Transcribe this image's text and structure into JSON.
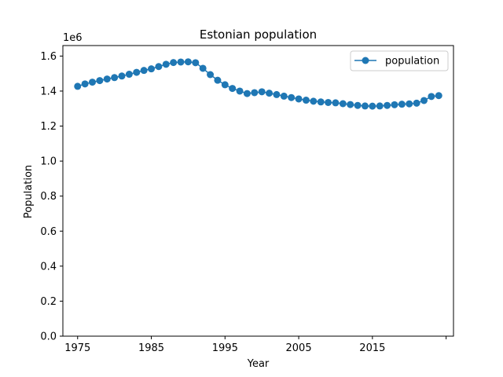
{
  "chart_data": {
    "type": "line",
    "title": "Estonian population",
    "xlabel": "Year",
    "ylabel": "Population",
    "y_offset_label": "1e6",
    "y_scale_factor": 1000000,
    "xlim": [
      1973,
      2026
    ],
    "ylim": [
      0,
      1.66
    ],
    "x_ticks": [
      1975,
      1985,
      1995,
      2005,
      2015,
      2025
    ],
    "x_tick_labels": [
      "1975",
      "1985",
      "1995",
      "2005",
      "2015",
      ""
    ],
    "y_ticks": [
      0.0,
      0.2,
      0.4,
      0.6,
      0.8,
      1.0,
      1.2,
      1.4,
      1.6
    ],
    "y_tick_labels": [
      "0.0",
      "0.2",
      "0.4",
      "0.6",
      "0.8",
      "1.0",
      "1.2",
      "1.4",
      "1.6"
    ],
    "grid": false,
    "legend_position": "upper right",
    "series": [
      {
        "name": "population",
        "color": "#1f77b4",
        "marker": "circle",
        "x": [
          1975,
          1976,
          1977,
          1978,
          1979,
          1980,
          1981,
          1982,
          1983,
          1984,
          1985,
          1986,
          1987,
          1988,
          1989,
          1990,
          1991,
          1992,
          1993,
          1994,
          1995,
          1996,
          1997,
          1998,
          1999,
          2000,
          2001,
          2002,
          2003,
          2004,
          2005,
          2006,
          2007,
          2008,
          2009,
          2010,
          2011,
          2012,
          2013,
          2014,
          2015,
          2016,
          2017,
          2018,
          2019,
          2020,
          2021,
          2022,
          2023,
          2024
        ],
        "values": [
          1.427,
          1.441,
          1.451,
          1.46,
          1.469,
          1.477,
          1.486,
          1.496,
          1.507,
          1.518,
          1.527,
          1.54,
          1.553,
          1.563,
          1.566,
          1.567,
          1.562,
          1.53,
          1.494,
          1.462,
          1.436,
          1.415,
          1.4,
          1.386,
          1.391,
          1.396,
          1.388,
          1.38,
          1.371,
          1.363,
          1.355,
          1.348,
          1.342,
          1.338,
          1.335,
          1.333,
          1.328,
          1.323,
          1.318,
          1.315,
          1.314,
          1.315,
          1.318,
          1.322,
          1.325,
          1.327,
          1.331,
          1.346,
          1.369,
          1.374
        ]
      }
    ]
  }
}
